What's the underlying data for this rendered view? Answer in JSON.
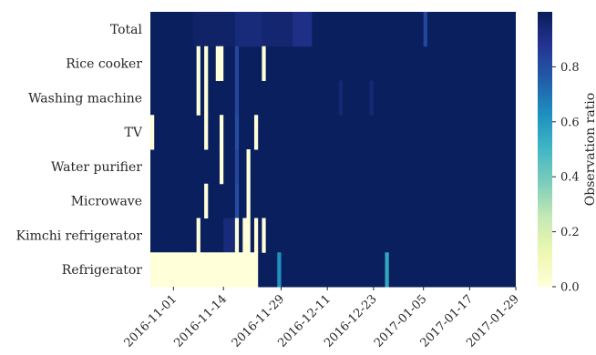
{
  "chart_data": {
    "type": "heatmap",
    "rows": [
      "Total",
      "Rice cooker",
      "Washing machine",
      "TV",
      "Water purifier",
      "Microwave",
      "Kimchi refrigerator",
      "Refrigerator"
    ],
    "x_start": "2016-10-26",
    "x_end": "2017-01-29",
    "x_ticks": [
      "2016-11-01",
      "2016-11-14",
      "2016-11-29",
      "2016-12-11",
      "2016-12-23",
      "2017-01-05",
      "2017-01-17",
      "2017-01-29"
    ],
    "colorbar": {
      "label": "Observation ratio",
      "ticks": [
        "0.0",
        "0.2",
        "0.4",
        "0.6",
        "0.8"
      ],
      "min": 0,
      "max": 1,
      "colormap": "YlGnBu"
    },
    "default_value": 0.99,
    "cells": [
      {
        "row": "Total",
        "from": "2016-11-06",
        "to": "2016-11-17",
        "value": 0.97
      },
      {
        "row": "Total",
        "from": "2016-11-17",
        "to": "2016-11-24",
        "value": 0.93
      },
      {
        "row": "Total",
        "from": "2016-11-24",
        "to": "2016-12-02",
        "value": 0.95
      },
      {
        "row": "Total",
        "from": "2016-12-02",
        "to": "2016-12-07",
        "value": 0.9
      },
      {
        "row": "Total",
        "from": "2017-01-05",
        "to": "2017-01-06",
        "value": 0.82
      },
      {
        "row": "Rice cooker",
        "from": "2016-11-07",
        "to": "2016-11-08",
        "value": 0.0
      },
      {
        "row": "Rice cooker",
        "from": "2016-11-09",
        "to": "2016-11-10",
        "value": 0.0
      },
      {
        "row": "Rice cooker",
        "from": "2016-11-12",
        "to": "2016-11-14",
        "value": 0.0
      },
      {
        "row": "Rice cooker",
        "from": "2016-11-17",
        "to": "2016-11-18",
        "value": 0.82
      },
      {
        "row": "Rice cooker",
        "from": "2016-11-24",
        "to": "2016-11-25",
        "value": 0.0
      },
      {
        "row": "Washing machine",
        "from": "2016-11-07",
        "to": "2016-11-08",
        "value": 0.0
      },
      {
        "row": "Washing machine",
        "from": "2016-11-09",
        "to": "2016-11-10",
        "value": 0.0
      },
      {
        "row": "Washing machine",
        "from": "2016-11-17",
        "to": "2016-11-18",
        "value": 0.82
      },
      {
        "row": "Washing machine",
        "from": "2016-12-14",
        "to": "2016-12-15",
        "value": 0.94
      },
      {
        "row": "Washing machine",
        "from": "2016-12-22",
        "to": "2016-12-23",
        "value": 0.94
      },
      {
        "row": "TV",
        "from": "2016-10-26",
        "to": "2016-10-27",
        "value": 0.0
      },
      {
        "row": "TV",
        "from": "2016-11-09",
        "to": "2016-11-10",
        "value": 0.0
      },
      {
        "row": "TV",
        "from": "2016-11-13",
        "to": "2016-11-14",
        "value": 0.0
      },
      {
        "row": "TV",
        "from": "2016-11-17",
        "to": "2016-11-18",
        "value": 0.8
      },
      {
        "row": "TV",
        "from": "2016-11-22",
        "to": "2016-11-23",
        "value": 0.0
      },
      {
        "row": "Water purifier",
        "from": "2016-11-13",
        "to": "2016-11-14",
        "value": 0.0
      },
      {
        "row": "Water purifier",
        "from": "2016-11-17",
        "to": "2016-11-18",
        "value": 0.82
      },
      {
        "row": "Water purifier",
        "from": "2016-11-20",
        "to": "2016-11-21",
        "value": 0.0
      },
      {
        "row": "Microwave",
        "from": "2016-11-09",
        "to": "2016-11-10",
        "value": 0.0
      },
      {
        "row": "Microwave",
        "from": "2016-11-17",
        "to": "2016-11-18",
        "value": 0.8
      },
      {
        "row": "Microwave",
        "from": "2016-11-20",
        "to": "2016-11-21",
        "value": 0.0
      },
      {
        "row": "Kimchi refrigerator",
        "from": "2016-11-07",
        "to": "2016-11-08",
        "value": 0.0
      },
      {
        "row": "Kimchi refrigerator",
        "from": "2016-11-14",
        "to": "2016-11-17",
        "value": 0.93
      },
      {
        "row": "Kimchi refrigerator",
        "from": "2016-11-17",
        "to": "2016-11-18",
        "value": 0.0
      },
      {
        "row": "Kimchi refrigerator",
        "from": "2016-11-19",
        "to": "2016-11-21",
        "value": 0.0
      },
      {
        "row": "Kimchi refrigerator",
        "from": "2016-11-22",
        "to": "2016-11-23",
        "value": 0.0
      },
      {
        "row": "Kimchi refrigerator",
        "from": "2016-11-24",
        "to": "2016-11-25",
        "value": 0.0
      },
      {
        "row": "Refrigerator",
        "from": "2016-10-26",
        "to": "2016-11-23",
        "value": 0.0
      },
      {
        "row": "Refrigerator",
        "from": "2016-11-28",
        "to": "2016-11-29",
        "value": 0.62
      },
      {
        "row": "Refrigerator",
        "from": "2016-12-26",
        "to": "2016-12-27",
        "value": 0.55
      }
    ]
  }
}
